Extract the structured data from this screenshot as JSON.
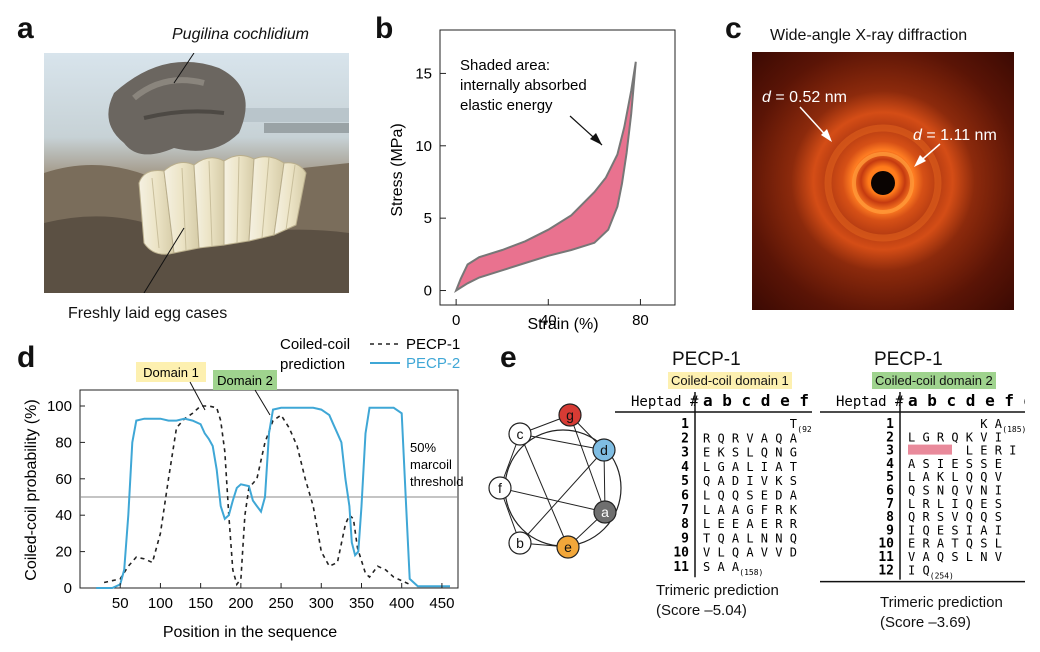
{
  "panels": {
    "a": {
      "letter": "a",
      "species": "Pugilina cochlidium",
      "caption": "Freshly laid egg cases"
    },
    "b": {
      "letter": "b",
      "annotation": [
        "Shaded area:",
        "internally absorbed",
        "elastic energy"
      ],
      "xlabel": "Strain (%)",
      "ylabel": "Stress (MPa)",
      "xticks": [
        "0",
        "40",
        "80"
      ],
      "yticks": [
        "0",
        "5",
        "10",
        "15"
      ],
      "fill_color": "#e9728f"
    },
    "c": {
      "letter": "c",
      "title": "Wide-angle X-ray diffraction",
      "d1_var": "d",
      "d1_value": " = 0.52 nm",
      "d2_var": "d",
      "d2_value": " = 1.11 nm"
    },
    "d": {
      "letter": "d",
      "legend_title": [
        "Coiled-coil",
        "prediction"
      ],
      "domain1": "Domain 1",
      "domain2": "Domain 2",
      "threshold": [
        "50%",
        "marcoil",
        "threshold"
      ],
      "xlabel": "Position in the sequence",
      "ylabel": "Coiled-coil probability (%)",
      "xticks": [
        "50",
        "100",
        "150",
        "200",
        "250",
        "300",
        "350",
        "400",
        "450"
      ],
      "yticks": [
        "0",
        "20",
        "40",
        "60",
        "80",
        "100"
      ]
    },
    "e": {
      "letter": "e",
      "wheel": [
        "g",
        "d",
        "a",
        "e",
        "b",
        "f",
        "c"
      ],
      "wheel_colors": {
        "g": "#d63b34",
        "d": "#7fbde3",
        "a": "#6f6f6f",
        "e": "#f2a73a"
      },
      "table1": {
        "title": "PECP-1",
        "domain_label": "Coiled-coil domain 1",
        "domain_color": "#fdf0b0",
        "heptad_label": "Heptad #",
        "header": "a b c d e f g",
        "rows": [
          {
            "n": "1",
            "seq": "            T",
            "sub": "(92)"
          },
          {
            "n": "2",
            "seq": "R Q R V A Q A",
            "sub": ""
          },
          {
            "n": "3",
            "seq": "E K S L Q N G",
            "sub": ""
          },
          {
            "n": "4",
            "seq": "L G A L I A T",
            "sub": ""
          },
          {
            "n": "5",
            "seq": "Q A D I V K S",
            "sub": ""
          },
          {
            "n": "6",
            "seq": "L Q Q S E D A",
            "sub": ""
          },
          {
            "n": "7",
            "seq": "L A A G F R K",
            "sub": ""
          },
          {
            "n": "8",
            "seq": "L E E A E R R",
            "sub": ""
          },
          {
            "n": "9",
            "seq": "T Q A L N N Q",
            "sub": ""
          },
          {
            "n": "10",
            "seq": "V L Q A V V D",
            "sub": ""
          },
          {
            "n": "11",
            "seq": "S A A",
            "sub": "(158)"
          }
        ],
        "prediction": "Trimeric prediction",
        "score": "(Score –5.04)"
      },
      "table2": {
        "title": "PECP-1",
        "domain_label": "Coiled-coil domain 2",
        "domain_color": "#9fd38e",
        "heptad_label": "Heptad #",
        "header": "a b c d e f g",
        "rows": [
          {
            "n": "1",
            "seq": "          K A",
            "sub": "(185)"
          },
          {
            "n": "2",
            "seq": "L G R Q K V I",
            "sub": ""
          },
          {
            "n": "3",
            "seq": "        L E R I",
            "sub": ""
          },
          {
            "n": "4",
            "seq": "A S I E S S E",
            "sub": ""
          },
          {
            "n": "5",
            "seq": "L A K L Q Q V",
            "sub": ""
          },
          {
            "n": "6",
            "seq": "Q S N Q V N I",
            "sub": ""
          },
          {
            "n": "7",
            "seq": "L R L I Q E S",
            "sub": ""
          },
          {
            "n": "8",
            "seq": "Q R S V Q Q S",
            "sub": ""
          },
          {
            "n": "9",
            "seq": "I Q E S I A I",
            "sub": ""
          },
          {
            "n": "10",
            "seq": "E R A T Q S L",
            "sub": ""
          },
          {
            "n": "11",
            "seq": "V A Q S L N V",
            "sub": ""
          },
          {
            "n": "12",
            "seq": "I Q",
            "sub": "(254)"
          }
        ],
        "prediction": "Trimeric prediction",
        "score": "(Score –3.69)",
        "gap_color": "#e98a9b"
      }
    }
  },
  "chart_data": [
    {
      "type": "area",
      "panel": "b",
      "xlabel": "Strain (%)",
      "ylabel": "Stress (MPa)",
      "xlim": [
        -7,
        95
      ],
      "ylim": [
        -1,
        18
      ],
      "loading": {
        "x": [
          0,
          2,
          5,
          10,
          20,
          30,
          40,
          50,
          60,
          65,
          70,
          73,
          76,
          78
        ],
        "y": [
          0,
          0.8,
          1.8,
          2.3,
          2.8,
          3.4,
          4.2,
          5.2,
          6.8,
          7.8,
          9.4,
          11.3,
          13.8,
          15.8
        ]
      },
      "unloading": {
        "x": [
          78,
          76,
          74,
          72,
          70,
          66,
          60,
          50,
          40,
          30,
          20,
          10,
          5,
          0
        ],
        "y": [
          15.8,
          12.2,
          9.5,
          7.4,
          5.8,
          4.2,
          3.3,
          2.8,
          2.4,
          1.9,
          1.4,
          0.9,
          0.5,
          0
        ]
      }
    },
    {
      "type": "line",
      "panel": "d",
      "xlabel": "Position in the sequence",
      "ylabel": "Coiled-coil probability (%)",
      "xlim": [
        0,
        470
      ],
      "ylim": [
        0,
        100
      ],
      "threshold": 50,
      "series": [
        {
          "name": "PECP-1",
          "color": "#222222",
          "dash": "4,4",
          "x": [
            30,
            40,
            50,
            60,
            70,
            80,
            90,
            100,
            110,
            120,
            130,
            140,
            150,
            160,
            170,
            175,
            180,
            185,
            190,
            195,
            200,
            205,
            210,
            220,
            230,
            240,
            250,
            260,
            270,
            280,
            290,
            300,
            310,
            320,
            330,
            335,
            340,
            345,
            350,
            355,
            360,
            370,
            380,
            390,
            400,
            410
          ],
          "y": [
            3,
            4,
            5,
            12,
            17,
            16,
            14,
            30,
            60,
            88,
            93,
            96,
            100,
            100,
            99,
            92,
            75,
            40,
            10,
            2,
            5,
            40,
            55,
            60,
            80,
            92,
            95,
            88,
            78,
            60,
            45,
            20,
            12,
            14,
            35,
            40,
            38,
            22,
            15,
            8,
            6,
            12,
            10,
            6,
            4,
            2
          ]
        },
        {
          "name": "PECP-2",
          "color": "#3fa7d6",
          "dash": "",
          "x": [
            20,
            30,
            40,
            50,
            55,
            60,
            65,
            70,
            80,
            90,
            100,
            110,
            120,
            130,
            140,
            150,
            155,
            160,
            165,
            170,
            175,
            180,
            185,
            190,
            195,
            200,
            210,
            215,
            220,
            225,
            230,
            235,
            240,
            250,
            260,
            270,
            280,
            290,
            300,
            310,
            315,
            320,
            325,
            330,
            335,
            338,
            342,
            346,
            350,
            355,
            360,
            370,
            380,
            390,
            400,
            405,
            410,
            420,
            440,
            460
          ],
          "y": [
            0,
            0,
            0,
            2,
            10,
            40,
            80,
            92,
            93,
            93,
            93,
            92,
            92,
            93,
            92,
            90,
            85,
            82,
            78,
            65,
            45,
            38,
            40,
            48,
            55,
            57,
            56,
            48,
            45,
            42,
            50,
            85,
            98,
            99,
            99,
            99,
            99,
            99,
            98,
            95,
            90,
            85,
            80,
            60,
            45,
            25,
            18,
            20,
            45,
            85,
            99,
            99,
            99,
            99,
            96,
            50,
            5,
            1,
            1,
            1
          ]
        }
      ]
    }
  ]
}
